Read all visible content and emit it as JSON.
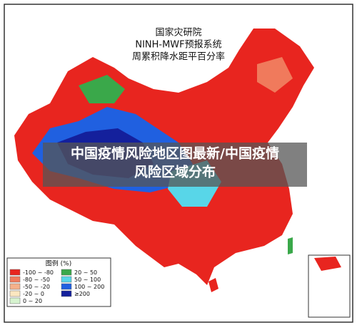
{
  "header": {
    "lines": [
      "国家灾研院",
      "NINH-MWF预报系统",
      "周累积降水距平百分率"
    ]
  },
  "caption": {
    "lines": [
      "中国疫情风险地区图最新/中国疫情",
      "风险区域分布"
    ]
  },
  "legend": {
    "title": "图例 (%)",
    "entries": [
      {
        "label": "-100 ~ -80",
        "color": "#e8251f"
      },
      {
        "label": "-80 ~ -50",
        "color": "#f07a5c"
      },
      {
        "label": "-50 ~ -20",
        "color": "#f5b08a"
      },
      {
        "label": "-20 ~ 0",
        "color": "#fbe7c0"
      },
      {
        "label": "0 ~ 20",
        "color": "#d6f3cf"
      },
      {
        "label": "20 ~ 50",
        "color": "#3aa84a"
      },
      {
        "label": "50 ~ 100",
        "color": "#58d6e8"
      },
      {
        "label": "100 ~ 200",
        "color": "#2060e0"
      },
      {
        "label": "≥200",
        "color": "#14209c"
      }
    ]
  }
}
